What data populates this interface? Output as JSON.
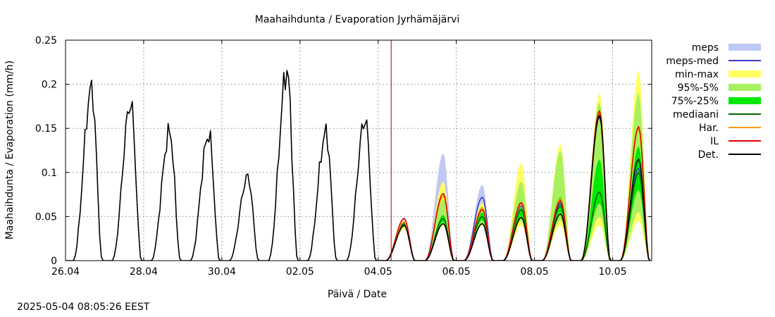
{
  "chart_data": {
    "type": "line",
    "title": "Maahaihdunta / Evaporation  Jyrhämäjärvi",
    "xlabel": "Päivä / Date",
    "ylabel": "Maahaihdunta / Evaporation (mm/h)",
    "xlim": [
      "2025-04-26",
      "2025-05-11"
    ],
    "ylim": [
      0,
      0.25
    ],
    "grid": true,
    "legend_position": "right",
    "x_tick_labels": [
      "26.04",
      "28.04",
      "30.04",
      "02.05",
      "04.05",
      "06.05",
      "08.05",
      "10.05"
    ],
    "y_tick_labels": [
      "0",
      "0.05",
      "0.1",
      "0.15",
      "0.2",
      "0.25"
    ],
    "current_time": "2025-05-04 08:00",
    "colors": {
      "meps": "#c0c8f4",
      "meps_med": "#3c3cc8",
      "min_max": "#ffff60",
      "p95_5": "#a8f060",
      "p75_25": "#00e800",
      "mediaani": "#006400",
      "har": "#ff9900",
      "il": "#dd0000",
      "det": "#000000",
      "now_line": "#aa0000",
      "grid": "#a0a0a0"
    },
    "legend": [
      {
        "key": "meps",
        "label": "meps",
        "style": "band"
      },
      {
        "key": "meps_med",
        "label": "meps-med",
        "style": "line"
      },
      {
        "key": "min_max",
        "label": "min-max",
        "style": "band"
      },
      {
        "key": "p95_5",
        "label": "95%-5%",
        "style": "band"
      },
      {
        "key": "p75_25",
        "label": "75%-25%",
        "style": "band"
      },
      {
        "key": "mediaani",
        "label": "mediaani",
        "style": "line"
      },
      {
        "key": "har",
        "label": "Har.",
        "style": "line"
      },
      {
        "key": "il",
        "label": "IL",
        "style": "line"
      },
      {
        "key": "det",
        "label": "Det.",
        "style": "line"
      }
    ],
    "daily_peaks": {
      "dates": [
        "2025-04-26",
        "2025-04-27",
        "2025-04-28",
        "2025-04-29",
        "2025-04-30",
        "2025-05-01",
        "2025-05-02",
        "2025-05-03",
        "2025-05-04",
        "2025-05-05",
        "2025-05-06",
        "2025-05-07",
        "2025-05-08",
        "2025-05-09",
        "2025-05-10"
      ],
      "peak_hour": 16,
      "det": [
        0.195,
        0.178,
        0.146,
        0.143,
        0.095,
        0.215,
        0.145,
        0.16,
        0.04,
        0.042,
        0.042,
        0.049,
        0.053,
        0.165,
        0.115
      ],
      "il": [
        null,
        null,
        null,
        null,
        null,
        null,
        null,
        null,
        0.048,
        0.076,
        0.058,
        0.066,
        0.068,
        0.17,
        0.152
      ],
      "har": [
        null,
        null,
        null,
        null,
        null,
        null,
        null,
        null,
        0.044,
        0.073,
        0.06,
        0.064,
        0.07,
        0.168,
        0.15
      ],
      "meps_med": [
        null,
        null,
        null,
        null,
        null,
        null,
        null,
        null,
        0.044,
        0.076,
        0.072,
        0.062,
        0.065,
        0.163,
        0.105
      ],
      "mediaani": [
        null,
        null,
        null,
        null,
        null,
        null,
        null,
        null,
        0.042,
        0.048,
        0.05,
        0.058,
        0.062,
        0.078,
        0.1
      ],
      "meps_min": [
        null,
        null,
        null,
        null,
        null,
        null,
        null,
        null,
        0.038,
        0.045,
        0.048,
        0.05,
        0.05,
        0.05,
        0.062
      ],
      "meps_max": [
        null,
        null,
        null,
        null,
        null,
        null,
        null,
        null,
        0.049,
        0.122,
        0.086,
        0.068,
        0.075,
        0.17,
        0.108
      ],
      "min": [
        null,
        null,
        null,
        null,
        null,
        null,
        null,
        null,
        0.036,
        0.04,
        0.04,
        0.04,
        0.04,
        0.04,
        0.045
      ],
      "max": [
        null,
        null,
        null,
        null,
        null,
        null,
        null,
        null,
        0.046,
        0.09,
        0.066,
        0.111,
        0.133,
        0.19,
        0.215
      ],
      "p5": [
        null,
        null,
        null,
        null,
        null,
        null,
        null,
        null,
        0.038,
        0.042,
        0.043,
        0.045,
        0.046,
        0.05,
        0.055
      ],
      "p95": [
        null,
        null,
        null,
        null,
        null,
        null,
        null,
        null,
        0.044,
        0.07,
        0.062,
        0.09,
        0.125,
        0.18,
        0.19
      ],
      "p25": [
        null,
        null,
        null,
        null,
        null,
        null,
        null,
        null,
        0.04,
        0.044,
        0.046,
        0.05,
        0.055,
        0.065,
        0.08
      ],
      "p75": [
        null,
        null,
        null,
        null,
        null,
        null,
        null,
        null,
        0.043,
        0.052,
        0.055,
        0.06,
        0.072,
        0.115,
        0.13
      ]
    }
  },
  "footer": {
    "timestamp": "2025-05-04 08:05:26 EEST"
  }
}
